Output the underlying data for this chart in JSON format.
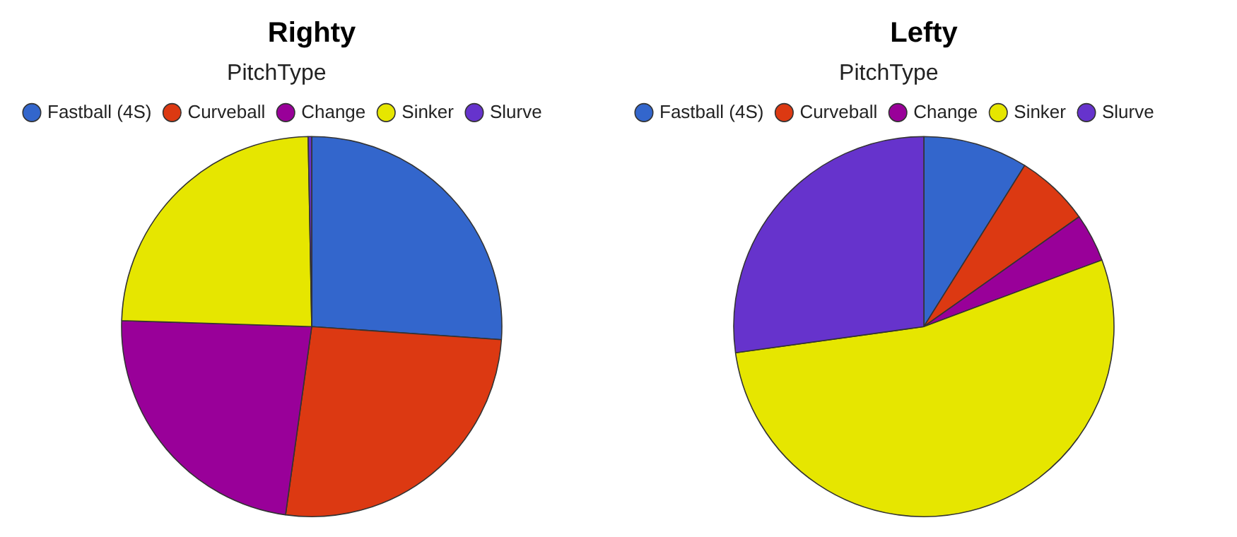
{
  "chart_data": [
    {
      "type": "pie",
      "title": "Righty",
      "legend_title": "PitchType",
      "legend": "top",
      "categories": [
        "Fastball (4S)",
        "Curveball",
        "Change",
        "Sinker",
        "Slurve"
      ],
      "values": [
        26.1,
        26.1,
        23.3,
        24.2,
        0.3
      ],
      "colors": [
        "#3366cc",
        "#dc3912",
        "#990099",
        "#e6e600",
        "#6633cc"
      ]
    },
    {
      "type": "pie",
      "title": "Lefty",
      "legend_title": "PitchType",
      "legend": "top",
      "categories": [
        "Fastball (4S)",
        "Curveball",
        "Change",
        "Sinker",
        "Slurve"
      ],
      "values": [
        8.9,
        6.3,
        4.1,
        53.5,
        27.2
      ],
      "colors": [
        "#3366cc",
        "#dc3912",
        "#990099",
        "#e6e600",
        "#6633cc"
      ]
    }
  ]
}
